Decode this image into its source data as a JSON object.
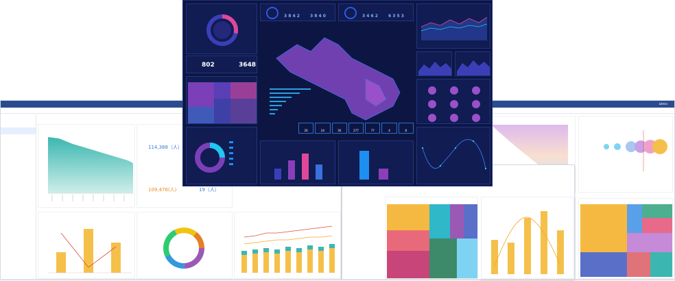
{
  "left_window": {
    "title": "",
    "tabs": [
      "",
      "",
      "",
      ""
    ],
    "sidebar_items": [
      "",
      "",
      "",
      "",
      "",
      "",
      "",
      "",
      "",
      "",
      "",
      "",
      "",
      "",
      "",
      "",
      "",
      "",
      "",
      ""
    ],
    "stats": [
      {
        "value": "114,388（人）"
      },
      {
        "value": "109,476(人)"
      },
      {
        "value": "19（人）"
      }
    ]
  },
  "dark_dashboard": {
    "counter_left": "802",
    "counter_right": "3648",
    "top_digits": [
      "3 8 4 2",
      "3 8 4 0",
      "3 4 6 2",
      "6 3 5 3"
    ],
    "line_title": "",
    "gauge_labels": [
      "",
      "",
      "",
      "",
      "",
      "",
      "",
      "",
      ""
    ],
    "table_values": [
      "26",
      "24",
      "36",
      "277",
      "77",
      "4",
      "8"
    ]
  },
  "right_window": {
    "user": "admin"
  }
}
